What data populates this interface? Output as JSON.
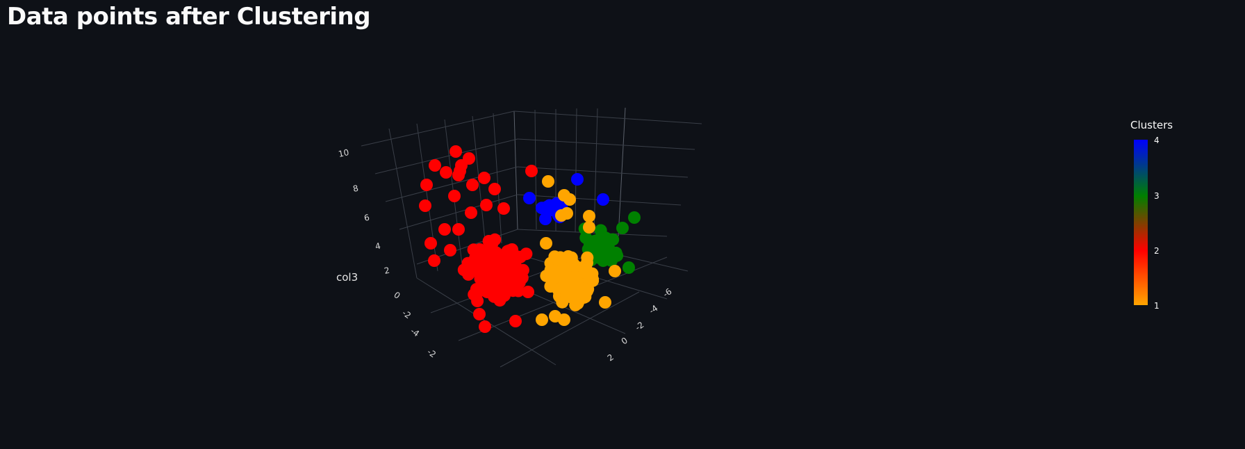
{
  "page": {
    "title": "Data points after Clustering"
  },
  "chart_data": {
    "type": "scatter3d",
    "z_axis": {
      "label": "col3",
      "ticks": [
        "10",
        "8",
        "6",
        "4",
        "2",
        "0",
        "-2",
        "-4"
      ]
    },
    "x_axis": {
      "label": "",
      "ticks": [
        "-2"
      ]
    },
    "y_axis": {
      "label": "",
      "ticks": [
        "-6",
        "-4",
        "-2",
        "0",
        "2"
      ]
    },
    "colorbar": {
      "title": "Clusters",
      "ticks": [
        "4",
        "3",
        "2",
        "1"
      ],
      "range": [
        1,
        4
      ],
      "colors": [
        "#ffa500",
        "#ff0000",
        "#008000",
        "#0000ff"
      ]
    },
    "clusters": [
      {
        "value": 1,
        "color": "#ffa500"
      },
      {
        "value": 2,
        "color": "#ff0000"
      },
      {
        "value": 3,
        "color": "#008000"
      },
      {
        "value": 4,
        "color": "#0000ff"
      }
    ]
  }
}
